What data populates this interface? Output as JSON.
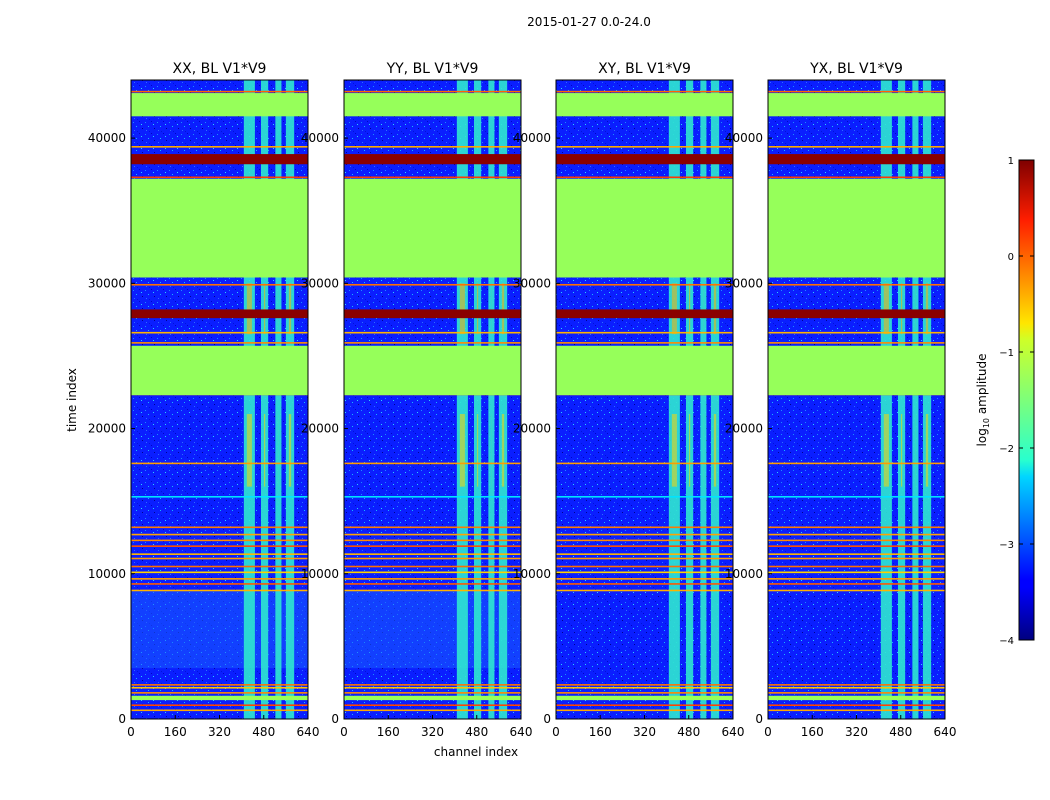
{
  "chart_data": {
    "type": "heatmap",
    "suptitle": "2015-01-27 0.0-24.0",
    "xlabel": "channel index",
    "ylabel": "time index",
    "xlim": [
      0,
      640
    ],
    "ylim": [
      0,
      44000
    ],
    "xticks": [
      0,
      160,
      320,
      480,
      640
    ],
    "yticks": [
      0,
      10000,
      20000,
      30000,
      40000
    ],
    "panels": [
      {
        "title": "XX, BL V1*V9",
        "bright_cols": [
          [
            408,
            448
          ],
          [
            470,
            496
          ],
          [
            522,
            544
          ],
          [
            560,
            590
          ]
        ],
        "hot_rows": [
          [
            27600,
            28200
          ],
          [
            38200,
            38900
          ]
        ],
        "low_rows": [
          [
            3500,
            8800
          ]
        ]
      },
      {
        "title": "YY, BL V1*V9",
        "bright_cols": [
          [
            408,
            448
          ],
          [
            470,
            496
          ],
          [
            522,
            544
          ],
          [
            560,
            590
          ]
        ],
        "hot_rows": [
          [
            27600,
            28200
          ],
          [
            38200,
            38900
          ]
        ],
        "low_rows": [
          [
            3500,
            8800
          ]
        ]
      },
      {
        "title": "XY, BL V1*V9",
        "bright_cols": [
          [
            408,
            448
          ],
          [
            470,
            496
          ],
          [
            522,
            544
          ],
          [
            560,
            590
          ]
        ],
        "hot_rows": [
          [
            27600,
            28200
          ],
          [
            38200,
            38900
          ]
        ],
        "low_rows": []
      },
      {
        "title": "YX, BL V1*V9",
        "bright_cols": [
          [
            408,
            448
          ],
          [
            470,
            496
          ],
          [
            522,
            544
          ],
          [
            560,
            590
          ]
        ],
        "hot_rows": [
          [
            27600,
            28200
          ],
          [
            38200,
            38900
          ]
        ],
        "low_rows": []
      }
    ],
    "flagged_rows": [
      [
        30400,
        37200
      ],
      [
        22300,
        25700
      ],
      [
        41500,
        43100
      ],
      [
        1300,
        1600
      ]
    ],
    "colorbar": {
      "label": "log10 amplitude",
      "label_main": "log",
      "label_sub": "10",
      "label_rest": " amplitude",
      "range": [
        -4,
        1
      ],
      "ticks": [
        1,
        0,
        -1,
        -2,
        -3,
        -4
      ],
      "tick_labels": [
        "1",
        "0",
        "−1",
        "−2",
        "−3",
        "−4"
      ],
      "cmap": "jet"
    }
  }
}
